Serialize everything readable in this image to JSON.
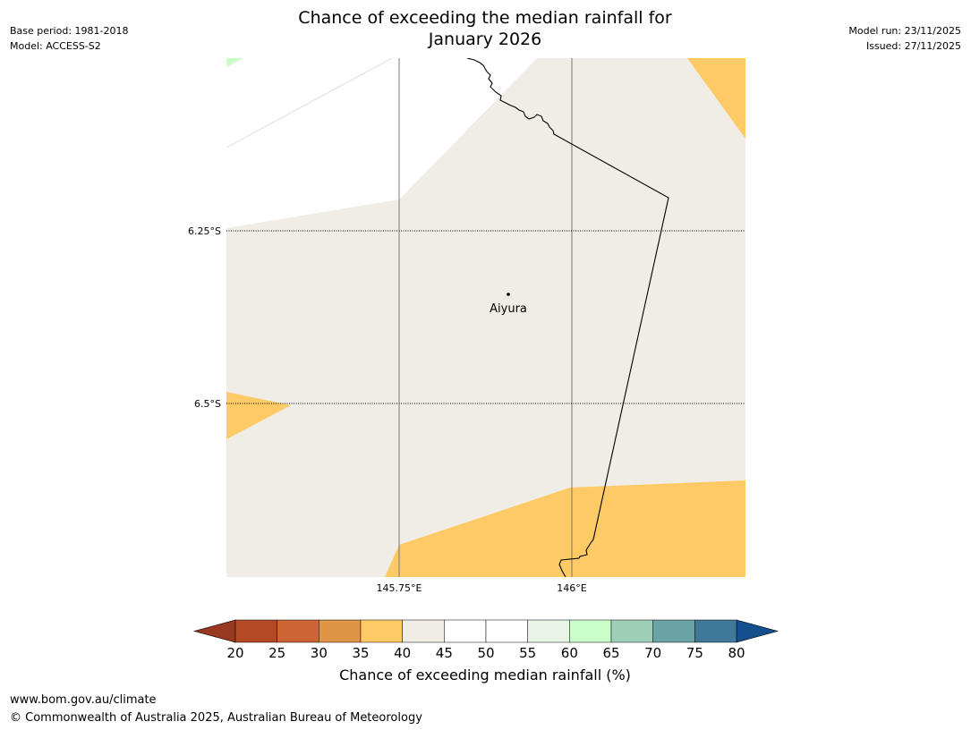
{
  "header": {
    "title_line1": "Chance of exceeding the median rainfall for",
    "title_line2": "January 2026",
    "base_period": "Base period: 1981-2018",
    "model": "Model: ACCESS-S2",
    "model_run": "Model run: 23/11/2025",
    "issued": "Issued: 27/11/2025"
  },
  "map": {
    "lat_labels": [
      "6.25°S",
      "6.5°S"
    ],
    "lon_labels": [
      "145.75°E",
      "146°E"
    ],
    "place": "Aiyura"
  },
  "colorbar": {
    "label": "Chance of exceeding median rainfall (%)",
    "ticks": [
      "20",
      "25",
      "30",
      "35",
      "40",
      "45",
      "50",
      "55",
      "60",
      "65",
      "70",
      "75",
      "80"
    ],
    "colors": [
      "#b34a25",
      "#cc6433",
      "#e09445",
      "#fdca66",
      "#f0ece6",
      "#ffffff",
      "#ffffff",
      "#e8f5e6",
      "#c9fdc9",
      "#9ecfb8",
      "#6aa3a6",
      "#3f7899"
    ],
    "under_color": "#99391f",
    "over_color": "#134f8a",
    "bin_40_45": "#f0ece6",
    "bin_35_40": "#fdca66",
    "bin_60_65": "#c9fdc9"
  },
  "footer": {
    "url": "www.bom.gov.au/climate",
    "copyright": "© Commonwealth of Australia 2025, Australian Bureau of Meteorology"
  }
}
